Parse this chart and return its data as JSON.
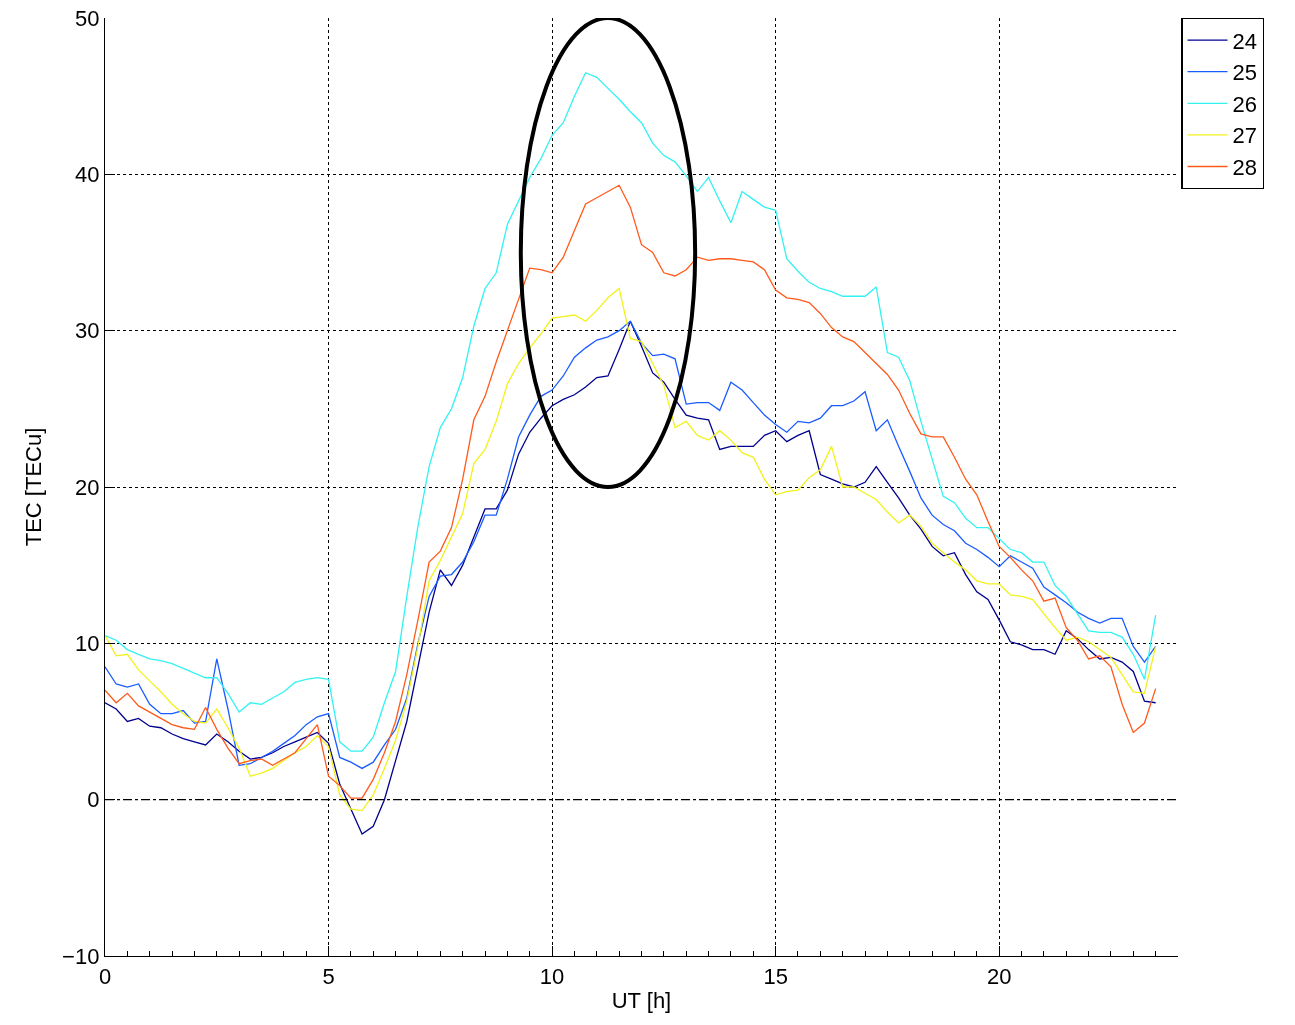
{
  "chart_data": {
    "type": "line",
    "xlabel": "UT [h]",
    "ylabel": "TEC [TECu]",
    "xlim": [
      0,
      24
    ],
    "xticks": [
      0,
      5,
      10,
      15,
      20
    ],
    "ylim": [
      -10,
      50
    ],
    "yticks": [
      -10,
      0,
      10,
      20,
      30,
      40,
      50
    ],
    "grid": true,
    "legend": "top right",
    "marker": "none",
    "line_style": "solid",
    "ref_lines": [
      {
        "axis": "y",
        "value": 0,
        "color": "#000000",
        "line_style": "dashdot"
      }
    ],
    "x": [
      0,
      0.25,
      0.5,
      0.75,
      1,
      1.25,
      1.5,
      1.75,
      2,
      2.25,
      2.5,
      2.75,
      3,
      3.25,
      3.5,
      3.75,
      4,
      4.25,
      4.5,
      4.75,
      5,
      5.25,
      5.5,
      5.75,
      6,
      6.25,
      6.5,
      6.75,
      7,
      7.25,
      7.5,
      7.75,
      8,
      8.25,
      8.5,
      8.75,
      9,
      9.25,
      9.5,
      9.75,
      10,
      10.25,
      10.5,
      10.75,
      11,
      11.25,
      11.5,
      11.75,
      12,
      12.25,
      12.5,
      12.75,
      13,
      13.25,
      13.5,
      13.75,
      14,
      14.25,
      14.5,
      14.75,
      15,
      15.25,
      15.5,
      15.75,
      16,
      16.25,
      16.5,
      16.75,
      17,
      17.25,
      17.5,
      17.75,
      18,
      18.25,
      18.5,
      18.75,
      19,
      19.25,
      19.5,
      19.75,
      20,
      20.25,
      20.5,
      20.75,
      21,
      21.25,
      21.5,
      21.75,
      22,
      22.25,
      22.5,
      22.75,
      23,
      23.25,
      23.5
    ],
    "series": [
      {
        "name": "24",
        "color": "#00008f",
        "values": [
          6.2,
          5.8,
          5.0,
          5.2,
          4.7,
          4.6,
          4.2,
          3.9,
          3.7,
          3.5,
          4.2,
          3.7,
          3.1,
          2.6,
          2.7,
          3.0,
          3.4,
          3.7,
          4.0,
          4.3,
          3.6,
          1.0,
          -0.6,
          -2.2,
          -1.7,
          0.0,
          2.5,
          5.0,
          8.5,
          12.0,
          14.7,
          13.7,
          15.0,
          16.8,
          18.6,
          18.6,
          19.8,
          22.1,
          23.5,
          24.4,
          25.2,
          25.6,
          25.9,
          26.4,
          27.0,
          27.1,
          28.8,
          30.6,
          29.0,
          27.3,
          26.7,
          25.6,
          24.6,
          24.4,
          24.3,
          22.4,
          22.6,
          22.6,
          22.6,
          23.3,
          23.6,
          22.9,
          23.3,
          23.6,
          20.8,
          20.5,
          20.2,
          20.0,
          20.3,
          21.3,
          20.3,
          19.3,
          18.2,
          17.3,
          16.2,
          15.6,
          15.8,
          14.4,
          13.3,
          12.8,
          11.5,
          10.1,
          9.9,
          9.6,
          9.6,
          9.3,
          10.8,
          10.3,
          9.6,
          9.0,
          9.1,
          8.8,
          8.2,
          6.3,
          6.2
        ]
      },
      {
        "name": "25",
        "color": "#1a5cff",
        "values": [
          8.5,
          7.4,
          7.2,
          7.4,
          6.1,
          5.5,
          5.5,
          5.7,
          4.9,
          5.0,
          9.0,
          5.8,
          2.2,
          2.3,
          2.7,
          3.1,
          3.6,
          4.1,
          4.8,
          5.3,
          5.5,
          2.7,
          2.4,
          2.0,
          2.4,
          3.5,
          4.5,
          6.5,
          10.0,
          13.0,
          14.3,
          14.4,
          15.2,
          16.5,
          18.2,
          18.2,
          20.5,
          23.2,
          24.6,
          25.8,
          26.2,
          27.1,
          28.3,
          28.9,
          29.4,
          29.6,
          30.0,
          30.6,
          29.2,
          28.4,
          28.5,
          28.2,
          25.3,
          25.4,
          25.4,
          24.9,
          26.7,
          26.2,
          25.4,
          24.6,
          24.0,
          23.5,
          24.2,
          24.1,
          24.4,
          25.2,
          25.2,
          25.5,
          26.1,
          23.6,
          24.3,
          22.6,
          21.0,
          19.3,
          18.2,
          17.6,
          17.2,
          16.4,
          16.0,
          15.5,
          14.9,
          15.6,
          15.2,
          14.8,
          13.6,
          13.1,
          12.6,
          12.0,
          11.6,
          11.3,
          11.6,
          11.6,
          9.8,
          8.8,
          9.8
        ]
      },
      {
        "name": "26",
        "color": "#33f2f2",
        "values": [
          10.5,
          10.2,
          9.6,
          9.3,
          9.0,
          8.9,
          8.7,
          8.4,
          8.1,
          7.8,
          7.8,
          6.8,
          5.6,
          6.2,
          6.1,
          6.5,
          6.9,
          7.5,
          7.7,
          7.8,
          7.7,
          3.7,
          3.1,
          3.1,
          4.0,
          6.2,
          8.2,
          13.0,
          17.5,
          21.3,
          23.8,
          25.0,
          27.0,
          30.3,
          32.7,
          33.7,
          36.8,
          38.3,
          39.8,
          41.0,
          42.5,
          43.3,
          45.0,
          46.5,
          46.2,
          45.5,
          44.8,
          44.0,
          43.3,
          42.0,
          41.2,
          40.8,
          39.9,
          38.9,
          39.8,
          38.3,
          36.9,
          38.9,
          38.4,
          37.9,
          37.7,
          34.6,
          33.8,
          33.1,
          32.7,
          32.5,
          32.2,
          32.2,
          32.2,
          32.8,
          28.6,
          28.3,
          26.8,
          24.2,
          21.8,
          19.4,
          19.0,
          18.0,
          17.4,
          17.4,
          16.7,
          16.0,
          15.8,
          15.2,
          15.2,
          13.7,
          13.0,
          11.9,
          10.8,
          10.7,
          10.7,
          10.4,
          9.3,
          7.7,
          11.8
        ]
      },
      {
        "name": "27",
        "color": "#f2f21a",
        "values": [
          10.5,
          9.2,
          9.3,
          8.3,
          7.6,
          6.9,
          6.1,
          5.5,
          5.0,
          4.9,
          5.8,
          4.6,
          3.3,
          1.5,
          1.7,
          2.0,
          2.5,
          3.0,
          3.4,
          4.1,
          3.4,
          0.3,
          -0.6,
          -0.7,
          0.3,
          2.0,
          3.8,
          6.3,
          9.8,
          14.0,
          15.3,
          16.8,
          18.3,
          21.5,
          22.4,
          24.2,
          26.6,
          27.9,
          28.9,
          29.8,
          30.8,
          30.9,
          31.0,
          30.6,
          31.3,
          32.1,
          32.7,
          29.5,
          29.3,
          27.9,
          26.5,
          23.8,
          24.2,
          23.3,
          23.0,
          23.6,
          23.0,
          22.2,
          21.9,
          20.5,
          19.5,
          19.7,
          19.8,
          20.6,
          21.1,
          22.6,
          20.0,
          20.0,
          19.6,
          19.2,
          18.4,
          17.7,
          18.2,
          17.5,
          16.4,
          15.8,
          15.2,
          14.7,
          14.0,
          13.8,
          13.8,
          13.1,
          13.0,
          12.8,
          11.9,
          11.0,
          10.2,
          10.4,
          10.1,
          9.6,
          9.1,
          8.0,
          6.9,
          6.8,
          9.8
        ]
      },
      {
        "name": "28",
        "color": "#ff5a1a",
        "values": [
          7.0,
          6.2,
          6.8,
          6.0,
          5.6,
          5.2,
          4.8,
          4.6,
          4.5,
          5.9,
          4.5,
          3.3,
          2.3,
          2.5,
          2.6,
          2.2,
          2.6,
          3.0,
          3.9,
          4.8,
          1.5,
          0.9,
          0.1,
          0.1,
          1.3,
          3.0,
          5.0,
          8.0,
          11.5,
          15.2,
          15.9,
          17.4,
          20.5,
          24.3,
          25.8,
          28.0,
          30.0,
          32.0,
          34.0,
          33.9,
          33.7,
          34.7,
          36.4,
          38.1,
          38.5,
          38.9,
          39.3,
          37.9,
          35.5,
          35.0,
          33.7,
          33.5,
          33.9,
          34.7,
          34.5,
          34.6,
          34.6,
          34.5,
          34.4,
          33.9,
          32.6,
          32.1,
          32.0,
          31.8,
          31.1,
          30.2,
          29.6,
          29.3,
          28.6,
          27.9,
          27.2,
          26.2,
          24.7,
          23.4,
          23.2,
          23.2,
          21.9,
          20.5,
          19.5,
          17.8,
          16.2,
          15.5,
          14.7,
          14.0,
          12.7,
          12.9,
          11.0,
          10.2,
          9.0,
          9.2,
          8.5,
          6.1,
          4.3,
          4.9,
          7.1
        ]
      }
    ]
  }
}
